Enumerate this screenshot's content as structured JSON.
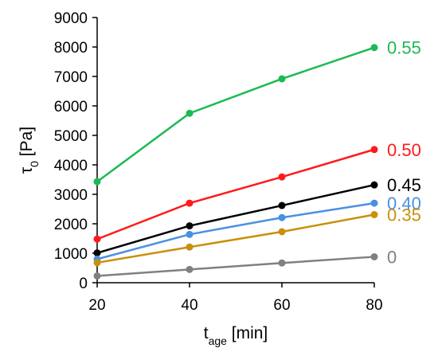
{
  "chart_data": {
    "type": "line",
    "x": [
      20,
      40,
      60,
      80
    ],
    "xlim": [
      20,
      80
    ],
    "xticks": [
      20,
      40,
      60,
      80
    ],
    "ylim": [
      0,
      9000
    ],
    "yticks": [
      0,
      1000,
      2000,
      3000,
      4000,
      5000,
      6000,
      7000,
      8000,
      9000
    ],
    "xlabel": {
      "main": "t",
      "sub": "age",
      "unit": " [min]"
    },
    "ylabel": {
      "main": "τ",
      "sub": "0",
      "unit": " [Pa]"
    },
    "grid": false,
    "series": [
      {
        "name": "0.55",
        "color": "#1db954",
        "values": [
          3430,
          5750,
          6920,
          7980
        ]
      },
      {
        "name": "0.50",
        "color": "#ff1a1a",
        "values": [
          1480,
          2700,
          3590,
          4520
        ]
      },
      {
        "name": "0.45",
        "color": "#000000",
        "values": [
          1010,
          1930,
          2620,
          3320
        ]
      },
      {
        "name": "0.40",
        "color": "#4a90e2",
        "values": [
          800,
          1640,
          2210,
          2700
        ]
      },
      {
        "name": "0.35",
        "color": "#c8900c",
        "values": [
          680,
          1210,
          1730,
          2310
        ]
      },
      {
        "name": "0",
        "color": "#808080",
        "values": [
          230,
          450,
          670,
          880
        ]
      }
    ]
  }
}
